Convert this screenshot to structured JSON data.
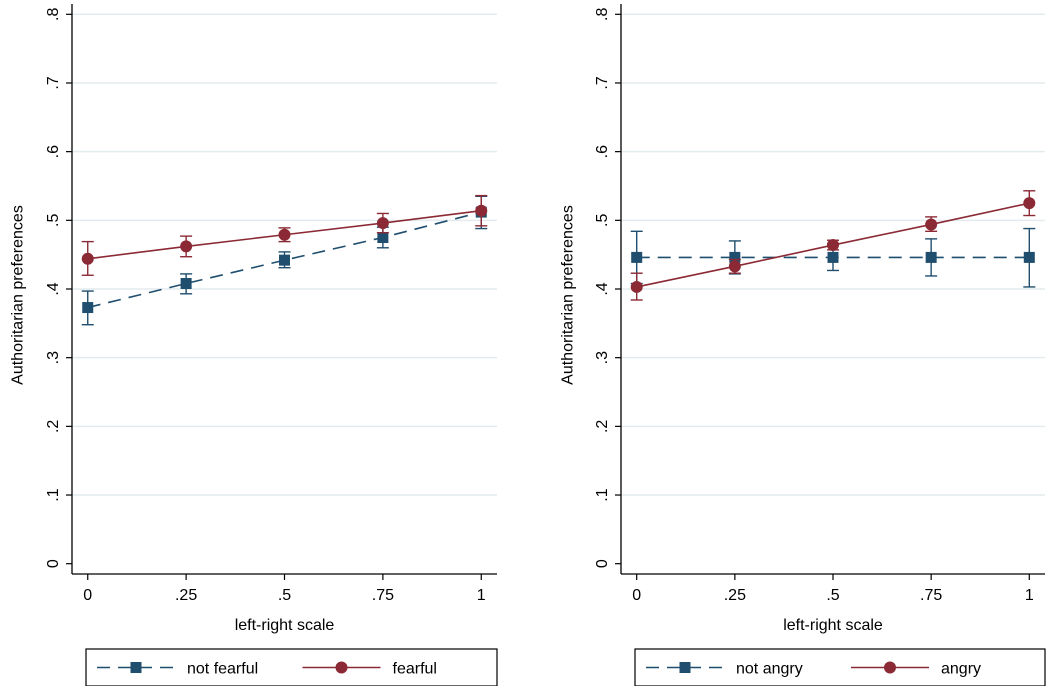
{
  "chart_data": [
    {
      "type": "line",
      "title": "",
      "xlabel": "left-right scale",
      "ylabel": "Authoritarian preferences",
      "x": [
        0,
        0.25,
        0.5,
        0.75,
        1
      ],
      "x_tick_labels": [
        "0",
        ".25",
        ".5",
        ".75",
        "1"
      ],
      "y_ticks": [
        0,
        0.1,
        0.2,
        0.3,
        0.4,
        0.5,
        0.6,
        0.7,
        0.8
      ],
      "y_tick_labels": [
        "0",
        ".1",
        ".2",
        ".3",
        ".4",
        ".5",
        ".6",
        ".7",
        ".8"
      ],
      "xlim": [
        -0.04,
        1.04
      ],
      "ylim": [
        -0.015,
        0.815
      ],
      "grid": true,
      "legend_position": "bottom",
      "series": [
        {
          "name": "not fearful",
          "color": "#1f4e6e",
          "marker": "square",
          "line_style": "dashed",
          "values": [
            0.373,
            0.408,
            0.442,
            0.475,
            0.512
          ],
          "ci_low": [
            0.348,
            0.393,
            0.431,
            0.46,
            0.488
          ],
          "ci_high": [
            0.397,
            0.422,
            0.454,
            0.49,
            0.535
          ]
        },
        {
          "name": "fearful",
          "color": "#8b2a35",
          "marker": "circle",
          "line_style": "solid",
          "values": [
            0.444,
            0.462,
            0.479,
            0.496,
            0.514
          ],
          "ci_low": [
            0.42,
            0.447,
            0.469,
            0.482,
            0.492
          ],
          "ci_high": [
            0.469,
            0.477,
            0.489,
            0.51,
            0.536
          ]
        }
      ]
    },
    {
      "type": "line",
      "title": "",
      "xlabel": "left-right scale",
      "ylabel": "Authoritarian preferences",
      "x": [
        0,
        0.25,
        0.5,
        0.75,
        1
      ],
      "x_tick_labels": [
        "0",
        ".25",
        ".5",
        ".75",
        "1"
      ],
      "y_ticks": [
        0,
        0.1,
        0.2,
        0.3,
        0.4,
        0.5,
        0.6,
        0.7,
        0.8
      ],
      "y_tick_labels": [
        "0",
        ".1",
        ".2",
        ".3",
        ".4",
        ".5",
        ".6",
        ".7",
        ".8"
      ],
      "xlim": [
        -0.04,
        1.04
      ],
      "ylim": [
        -0.015,
        0.815
      ],
      "grid": true,
      "legend_position": "bottom",
      "series": [
        {
          "name": "not angry",
          "color": "#1f4e6e",
          "marker": "square",
          "line_style": "dashed",
          "values": [
            0.446,
            0.446,
            0.446,
            0.446,
            0.446
          ],
          "ci_low": [
            0.408,
            0.422,
            0.427,
            0.419,
            0.403
          ],
          "ci_high": [
            0.484,
            0.47,
            0.466,
            0.473,
            0.488
          ]
        },
        {
          "name": "angry",
          "color": "#8b2a35",
          "marker": "circle",
          "line_style": "solid",
          "values": [
            0.403,
            0.433,
            0.464,
            0.494,
            0.525
          ],
          "ci_low": [
            0.384,
            0.423,
            0.457,
            0.484,
            0.507
          ],
          "ci_high": [
            0.423,
            0.443,
            0.471,
            0.505,
            0.543
          ]
        }
      ]
    }
  ]
}
